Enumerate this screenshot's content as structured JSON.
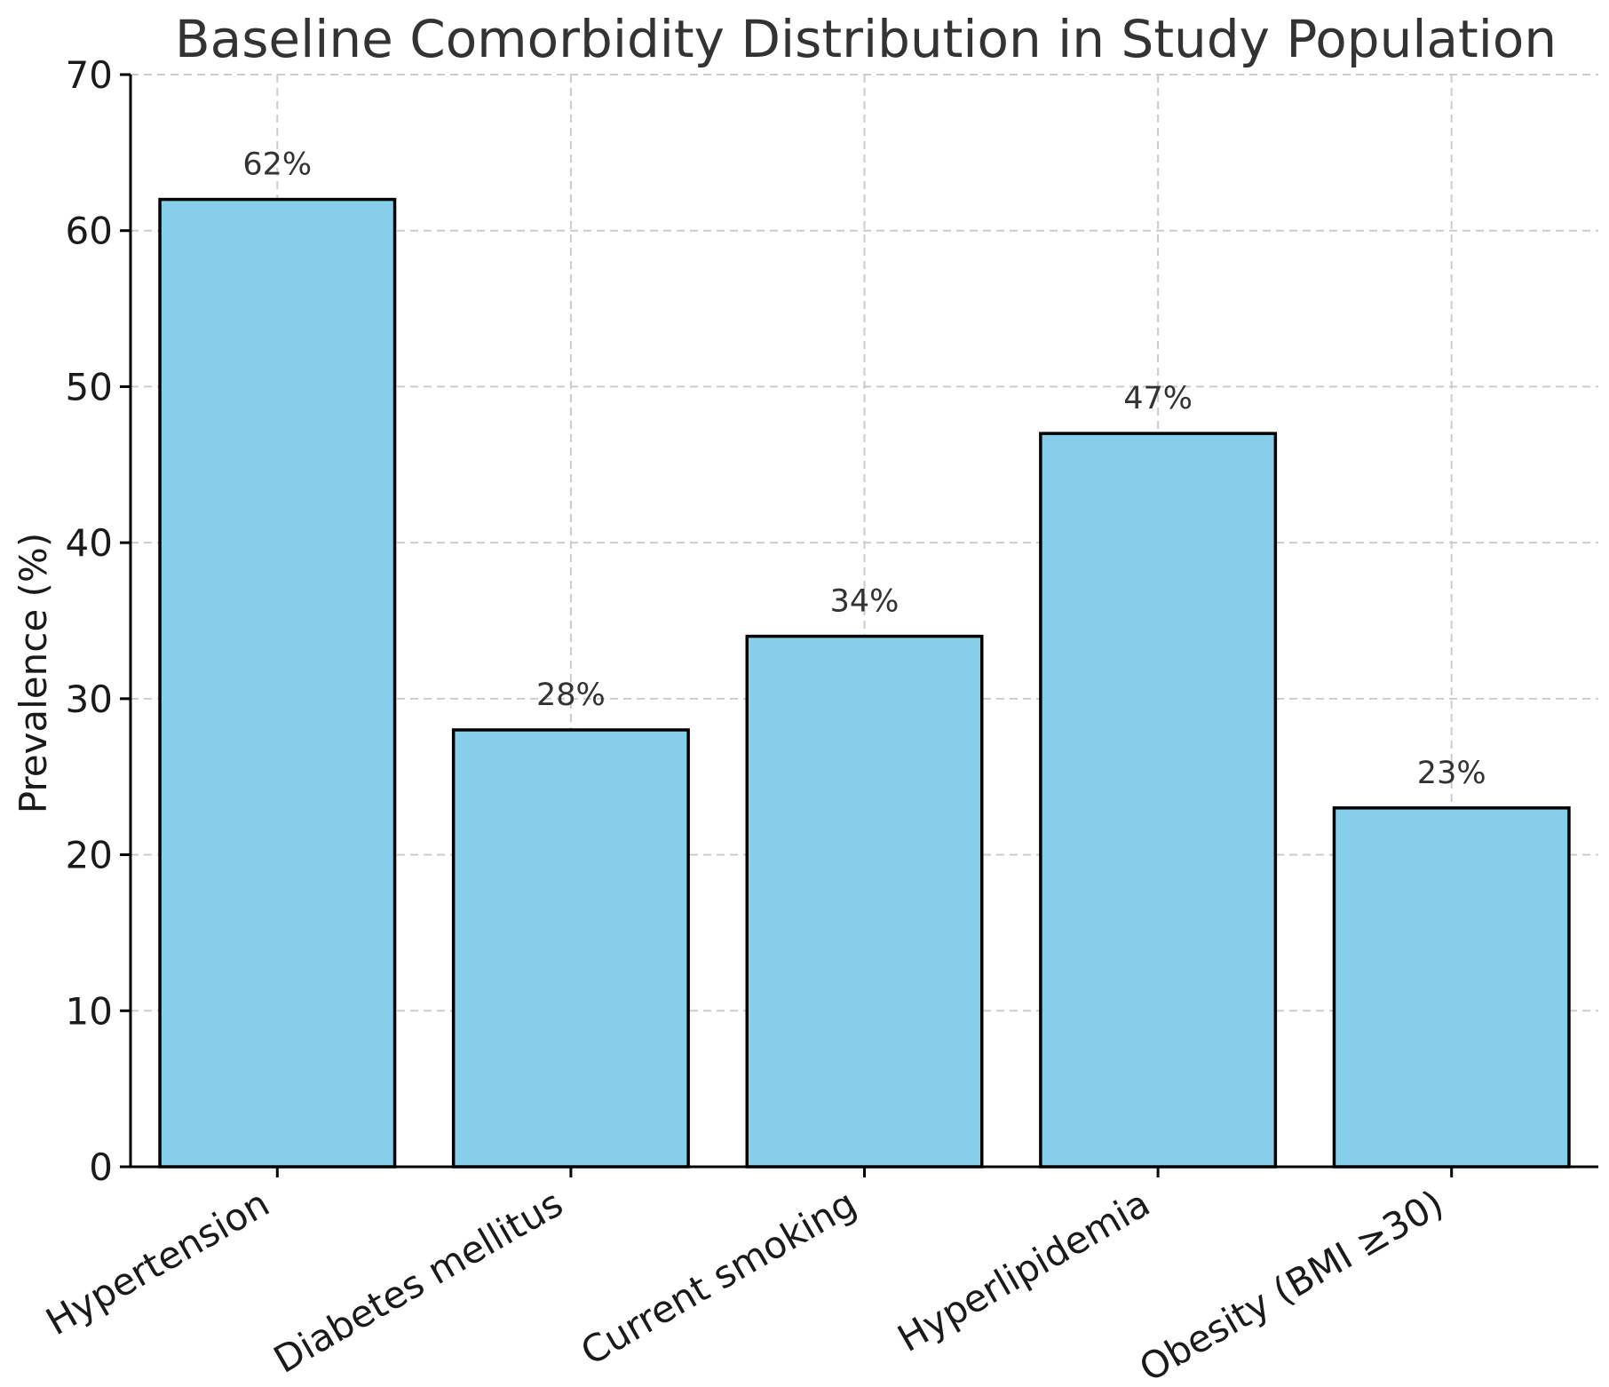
{
  "chart_data": {
    "type": "bar",
    "title": "Baseline Comorbidity Distribution in Study Population",
    "xlabel": "",
    "ylabel": "Prevalence (%)",
    "categories": [
      "Hypertension",
      "Diabetes mellitus",
      "Current smoking",
      "Hyperlipidemia",
      "Obesity (BMI ≥30)"
    ],
    "values": [
      62,
      28,
      34,
      47,
      23
    ],
    "data_labels": [
      "62%",
      "28%",
      "34%",
      "47%",
      "23%"
    ],
    "ylim": [
      0,
      70
    ],
    "yticks": [
      0,
      10,
      20,
      30,
      40,
      50,
      60,
      70
    ],
    "ytick_labels": [
      "0",
      "10",
      "20",
      "30",
      "40",
      "50",
      "60",
      "70"
    ],
    "grid": true,
    "bar_color": "#87CEEB",
    "edge_color": "#000000"
  }
}
